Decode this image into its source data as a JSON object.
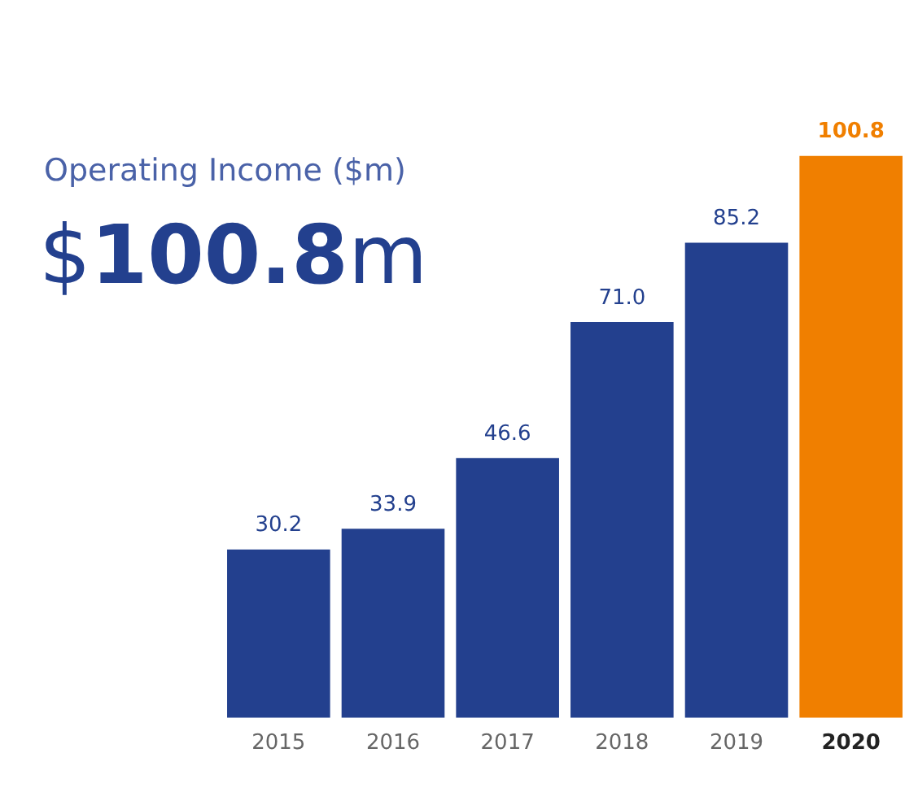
{
  "chart_data": {
    "type": "bar",
    "title": "Operating Income ($m)",
    "subtitle": "$100.8m",
    "categories": [
      "2015",
      "2016",
      "2017",
      "2018",
      "2019",
      "2020"
    ],
    "values": [
      30.2,
      33.9,
      46.6,
      71.0,
      85.2,
      100.8
    ],
    "colors": [
      "#23408e",
      "#23408e",
      "#23408e",
      "#23408e",
      "#23408e",
      "#f07f00"
    ],
    "value_labels": [
      "30.2",
      "33.9",
      "46.6",
      "71.0",
      "85.2",
      "100.8"
    ],
    "grid": false,
    "legend": false
  }
}
